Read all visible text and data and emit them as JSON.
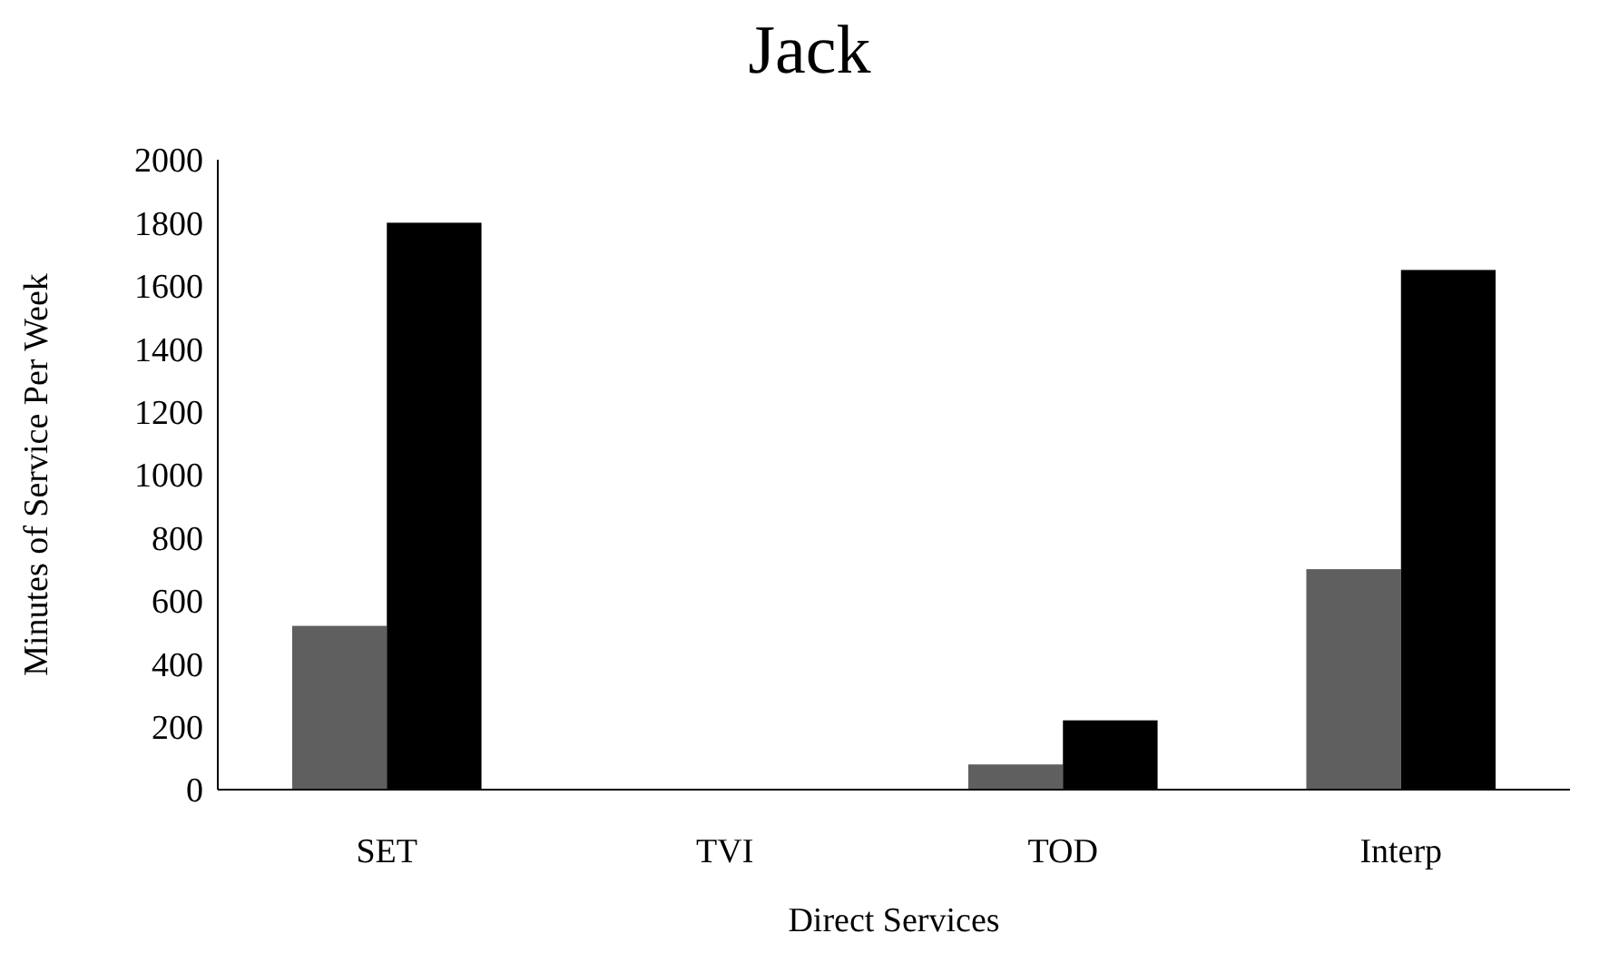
{
  "chart_data": {
    "type": "bar",
    "title": "Jack",
    "xlabel": "Direct Services",
    "ylabel": "Minutes of Service Per Week",
    "categories": [
      "SET",
      "TVI",
      "TOD",
      "Interp"
    ],
    "series": [
      {
        "color": "#5f5f5f",
        "values": [
          520,
          0,
          80,
          700
        ]
      },
      {
        "color": "#000000",
        "values": [
          1800,
          0,
          220,
          1650
        ]
      }
    ],
    "ylim": [
      0,
      2000
    ],
    "yticks": [
      0,
      200,
      400,
      600,
      800,
      1000,
      1200,
      1400,
      1600,
      1800,
      2000
    ],
    "grid": false
  }
}
